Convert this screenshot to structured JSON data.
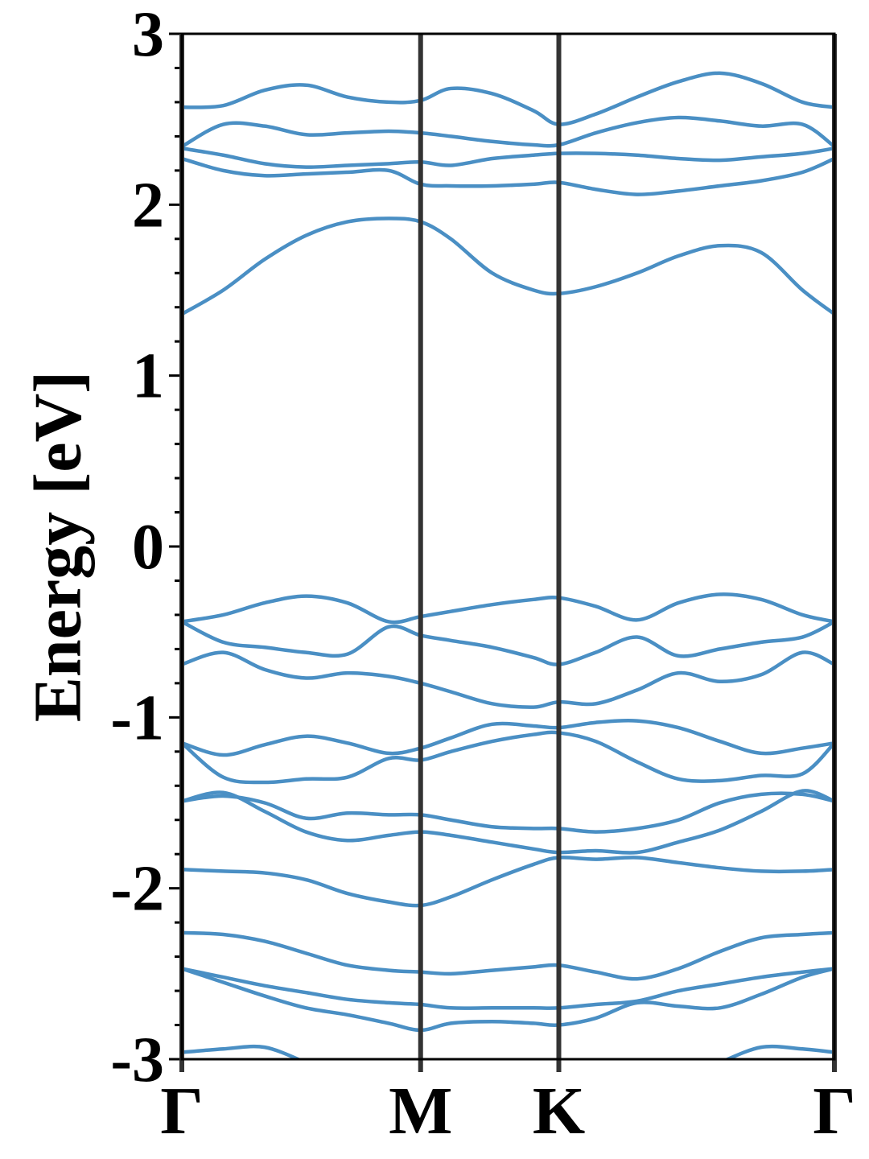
{
  "chart_data": {
    "type": "line",
    "ylabel": "Energy [eV]",
    "color": "#4a8fc4",
    "x": [
      0,
      0.1,
      0.2,
      0.3,
      0.4,
      0.5,
      0.577,
      0.65,
      0.75,
      0.85,
      0.911,
      1.0,
      1.1,
      1.2,
      1.3,
      1.4,
      1.5,
      1.577
    ],
    "xlim": [
      0,
      1.577
    ],
    "xticks": [
      {
        "value": 0,
        "label": "Γ"
      },
      {
        "value": 0.577,
        "label": "M"
      },
      {
        "value": 0.911,
        "label": "K"
      },
      {
        "value": 1.577,
        "label": "Γ"
      }
    ],
    "ylim": [
      -3,
      3
    ],
    "yticks": [
      -3,
      -2,
      -1,
      0,
      1,
      2,
      3
    ],
    "yminorticks": [
      -2.8,
      -2.6,
      -2.4,
      -2.2,
      -1.8,
      -1.6,
      -1.4,
      -1.2,
      -0.8,
      -0.6,
      -0.4,
      -0.2,
      0.2,
      0.4,
      0.6,
      0.8,
      1.2,
      1.4,
      1.6,
      1.8,
      2.2,
      2.4,
      2.6,
      2.8
    ],
    "series": [
      {
        "values": [
          2.57,
          2.58,
          2.67,
          2.7,
          2.63,
          2.6,
          2.61,
          2.68,
          2.65,
          2.55,
          2.47,
          2.53,
          2.63,
          2.72,
          2.77,
          2.71,
          2.6,
          2.57
        ]
      },
      {
        "values": [
          2.34,
          2.47,
          2.46,
          2.41,
          2.42,
          2.43,
          2.42,
          2.4,
          2.37,
          2.35,
          2.35,
          2.42,
          2.48,
          2.51,
          2.49,
          2.46,
          2.47,
          2.34
        ]
      },
      {
        "values": [
          2.33,
          2.29,
          2.24,
          2.22,
          2.23,
          2.24,
          2.25,
          2.23,
          2.27,
          2.29,
          2.3,
          2.3,
          2.29,
          2.27,
          2.26,
          2.28,
          2.3,
          2.33
        ]
      },
      {
        "values": [
          2.27,
          2.2,
          2.17,
          2.18,
          2.19,
          2.2,
          2.12,
          2.11,
          2.11,
          2.12,
          2.13,
          2.09,
          2.06,
          2.08,
          2.11,
          2.14,
          2.19,
          2.27
        ]
      },
      {
        "values": [
          1.36,
          1.5,
          1.68,
          1.82,
          1.9,
          1.92,
          1.9,
          1.8,
          1.6,
          1.5,
          1.48,
          1.52,
          1.6,
          1.7,
          1.76,
          1.72,
          1.5,
          1.36
        ]
      },
      {
        "values": [
          -0.44,
          -0.4,
          -0.33,
          -0.29,
          -0.33,
          -0.44,
          -0.41,
          -0.38,
          -0.34,
          -0.31,
          -0.3,
          -0.35,
          -0.43,
          -0.33,
          -0.28,
          -0.31,
          -0.4,
          -0.44
        ]
      },
      {
        "values": [
          -0.44,
          -0.56,
          -0.59,
          -0.62,
          -0.63,
          -0.47,
          -0.52,
          -0.55,
          -0.59,
          -0.65,
          -0.69,
          -0.62,
          -0.53,
          -0.64,
          -0.6,
          -0.56,
          -0.53,
          -0.44
        ]
      },
      {
        "values": [
          -0.69,
          -0.62,
          -0.72,
          -0.77,
          -0.74,
          -0.76,
          -0.8,
          -0.85,
          -0.92,
          -0.94,
          -0.91,
          -0.92,
          -0.84,
          -0.74,
          -0.79,
          -0.75,
          -0.62,
          -0.69
        ]
      },
      {
        "values": [
          -1.15,
          -1.22,
          -1.16,
          -1.11,
          -1.15,
          -1.21,
          -1.18,
          -1.12,
          -1.04,
          -1.05,
          -1.06,
          -1.03,
          -1.02,
          -1.06,
          -1.14,
          -1.21,
          -1.18,
          -1.15
        ]
      },
      {
        "values": [
          -1.15,
          -1.35,
          -1.38,
          -1.36,
          -1.35,
          -1.24,
          -1.25,
          -1.2,
          -1.14,
          -1.1,
          -1.09,
          -1.14,
          -1.26,
          -1.36,
          -1.37,
          -1.34,
          -1.33,
          -1.15
        ]
      },
      {
        "values": [
          -1.49,
          -1.46,
          -1.5,
          -1.59,
          -1.56,
          -1.57,
          -1.57,
          -1.6,
          -1.64,
          -1.65,
          -1.65,
          -1.67,
          -1.65,
          -1.6,
          -1.5,
          -1.45,
          -1.45,
          -1.49
        ]
      },
      {
        "values": [
          -1.49,
          -1.44,
          -1.55,
          -1.67,
          -1.72,
          -1.69,
          -1.67,
          -1.69,
          -1.73,
          -1.77,
          -1.79,
          -1.78,
          -1.79,
          -1.73,
          -1.66,
          -1.55,
          -1.43,
          -1.49
        ]
      },
      {
        "values": [
          -1.89,
          -1.9,
          -1.91,
          -1.95,
          -2.03,
          -2.08,
          -2.1,
          -2.05,
          -1.95,
          -1.86,
          -1.82,
          -1.83,
          -1.82,
          -1.85,
          -1.88,
          -1.9,
          -1.9,
          -1.89
        ]
      },
      {
        "values": [
          -2.26,
          -2.27,
          -2.31,
          -2.38,
          -2.45,
          -2.48,
          -2.49,
          -2.5,
          -2.48,
          -2.46,
          -2.45,
          -2.49,
          -2.53,
          -2.47,
          -2.37,
          -2.29,
          -2.27,
          -2.26
        ]
      },
      {
        "values": [
          -2.47,
          -2.52,
          -2.57,
          -2.61,
          -2.65,
          -2.67,
          -2.68,
          -2.7,
          -2.7,
          -2.7,
          -2.7,
          -2.68,
          -2.66,
          -2.6,
          -2.56,
          -2.52,
          -2.49,
          -2.47
        ]
      },
      {
        "values": [
          -2.47,
          -2.55,
          -2.63,
          -2.7,
          -2.74,
          -2.79,
          -2.83,
          -2.79,
          -2.78,
          -2.79,
          -2.8,
          -2.76,
          -2.67,
          -2.69,
          -2.7,
          -2.62,
          -2.52,
          -2.47
        ]
      },
      {
        "values": [
          -2.96,
          -2.94,
          -2.93,
          -3.02,
          null,
          null,
          null,
          null,
          null,
          null,
          null,
          null,
          null,
          null,
          -3.02,
          -2.93,
          -2.94,
          -2.96
        ]
      }
    ]
  }
}
